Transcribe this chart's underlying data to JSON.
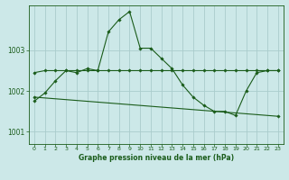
{
  "title": "Graphe pression niveau de la mer (hPa)",
  "bg_color": "#cce8e8",
  "grid_color": "#aacccc",
  "line_color": "#1a5c1a",
  "xlim": [
    -0.5,
    23.5
  ],
  "ylim": [
    1000.7,
    1004.1
  ],
  "yticks": [
    1001,
    1002,
    1003
  ],
  "xticks": [
    0,
    1,
    2,
    3,
    4,
    5,
    6,
    7,
    8,
    9,
    10,
    11,
    12,
    13,
    14,
    15,
    16,
    17,
    18,
    19,
    20,
    21,
    22,
    23
  ],
  "series1_x": [
    0,
    1,
    2,
    3,
    4,
    5,
    6,
    7,
    8,
    9,
    10,
    11,
    12,
    13,
    14,
    15,
    16,
    17,
    18,
    19,
    20,
    21,
    22,
    23
  ],
  "series1_y": [
    1001.75,
    1001.95,
    1002.25,
    1002.5,
    1002.45,
    1002.55,
    1002.5,
    1003.45,
    1003.75,
    1003.95,
    1003.05,
    1003.05,
    1002.8,
    1002.55,
    1002.15,
    1001.85,
    1001.65,
    1001.5,
    1001.5,
    1001.4,
    1002.0,
    1002.45,
    1002.5,
    1002.5
  ],
  "series2_x": [
    0,
    1,
    2,
    3,
    4,
    5,
    6,
    7,
    8,
    9,
    10,
    11,
    12,
    13,
    14,
    15,
    16,
    17,
    18,
    19,
    20,
    21,
    22,
    23
  ],
  "series2_y": [
    1002.45,
    1002.5,
    1002.5,
    1002.5,
    1002.5,
    1002.5,
    1002.5,
    1002.5,
    1002.5,
    1002.5,
    1002.5,
    1002.5,
    1002.5,
    1002.5,
    1002.5,
    1002.5,
    1002.5,
    1002.5,
    1002.5,
    1002.5,
    1002.5,
    1002.5,
    1002.5,
    1002.5
  ],
  "series3_x": [
    0,
    23
  ],
  "series3_y": [
    1001.85,
    1001.38
  ],
  "marker": "D",
  "markersize": 1.8,
  "linewidth": 0.8,
  "xlabel_fontsize": 5.5,
  "tick_fontsize": 4.5,
  "ytick_fontsize": 5.5
}
